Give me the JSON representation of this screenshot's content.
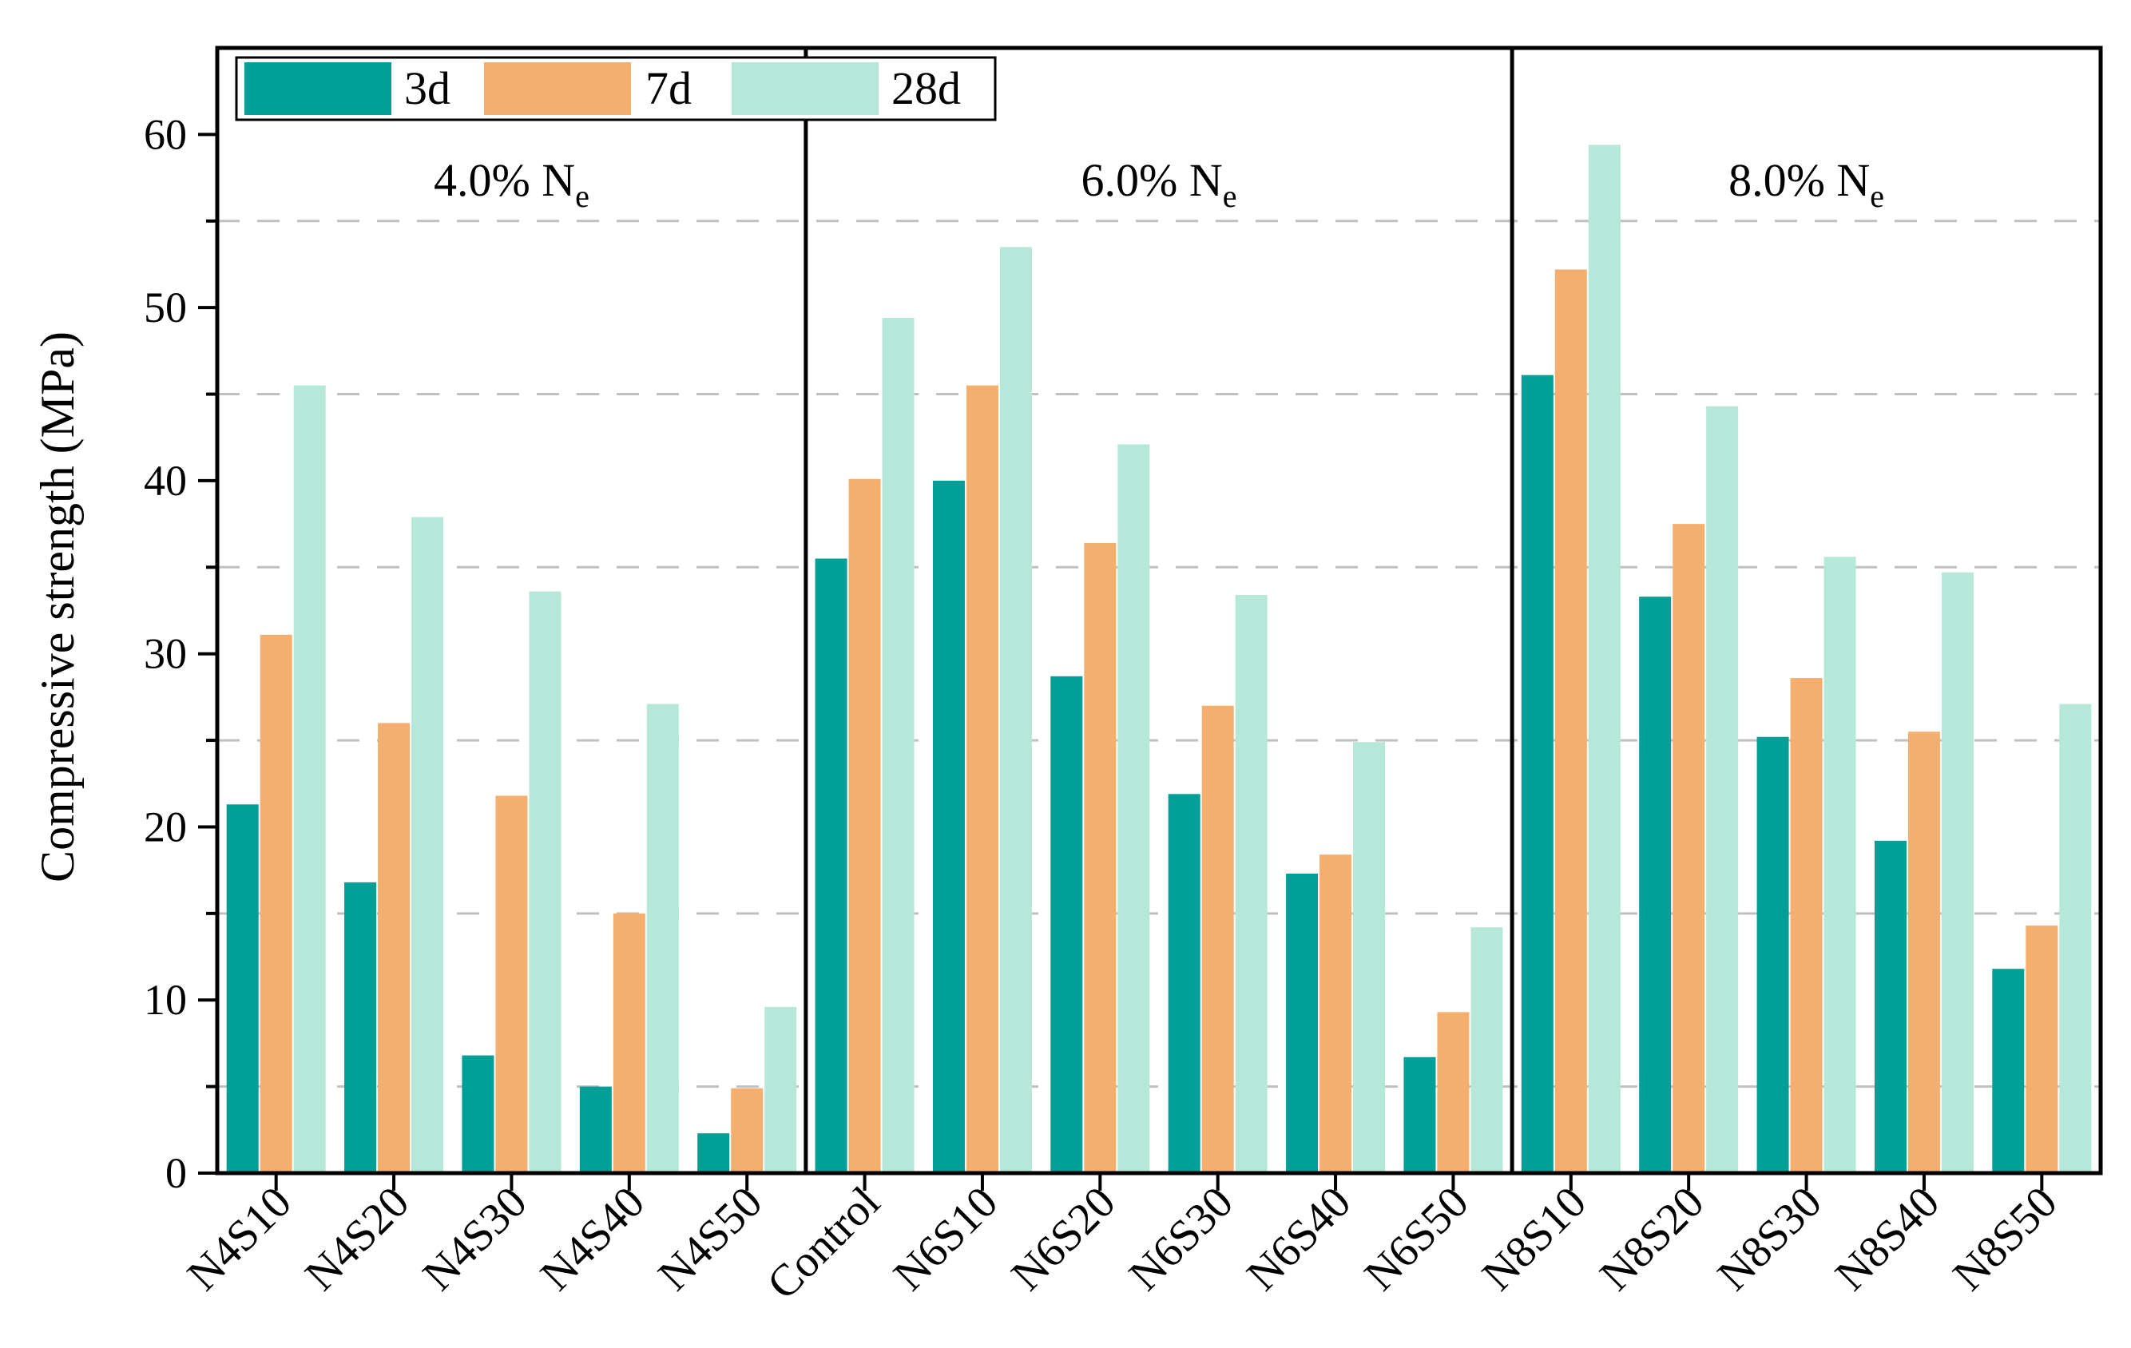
{
  "chart_data": {
    "type": "bar",
    "title": "",
    "xlabel": "",
    "ylabel": "Compressive strength (MPa)",
    "ylim": [
      0,
      65
    ],
    "yticks": [
      0,
      10,
      20,
      30,
      40,
      50,
      60
    ],
    "grid": "dashed horizontal at minor ticks (5, 15, 25, 35, 45, 55)",
    "legend_placement": "top-left",
    "categories": [
      "N4S10",
      "N4S20",
      "N4S30",
      "N4S40",
      "N4S50",
      "Control",
      "N6S10",
      "N6S20",
      "N6S30",
      "N6S40",
      "N6S50",
      "N8S10",
      "N8S20",
      "N8S30",
      "N8S40",
      "N8S50"
    ],
    "panels": [
      {
        "label": "4.0% N",
        "subscript": "e",
        "categories": [
          "N4S10",
          "N4S20",
          "N4S30",
          "N4S40",
          "N4S50"
        ]
      },
      {
        "label": "6.0% N",
        "subscript": "e",
        "categories": [
          "Control",
          "N6S10",
          "N6S20",
          "N6S30",
          "N6S40",
          "N6S50"
        ]
      },
      {
        "label": "8.0% N",
        "subscript": "e",
        "categories": [
          "N8S10",
          "N8S20",
          "N8S30",
          "N8S40",
          "N8S50"
        ]
      }
    ],
    "series": [
      {
        "name": "3d",
        "color": "#029F96",
        "values": [
          21.3,
          16.8,
          6.8,
          5.0,
          2.3,
          35.5,
          40.0,
          28.7,
          21.9,
          17.3,
          6.7,
          46.1,
          33.3,
          25.2,
          19.2,
          11.8
        ]
      },
      {
        "name": "7d",
        "color": "#F4AF6E",
        "values": [
          31.1,
          26.0,
          21.8,
          15.0,
          4.9,
          40.1,
          45.5,
          36.4,
          27.0,
          18.4,
          9.3,
          52.2,
          37.5,
          28.6,
          25.5,
          14.3
        ]
      },
      {
        "name": "28d",
        "color": "#B5E8D8",
        "values": [
          45.5,
          37.9,
          33.6,
          27.1,
          9.6,
          49.4,
          53.5,
          42.1,
          33.4,
          24.9,
          14.2,
          59.4,
          44.3,
          35.6,
          34.7,
          27.1
        ]
      }
    ]
  }
}
